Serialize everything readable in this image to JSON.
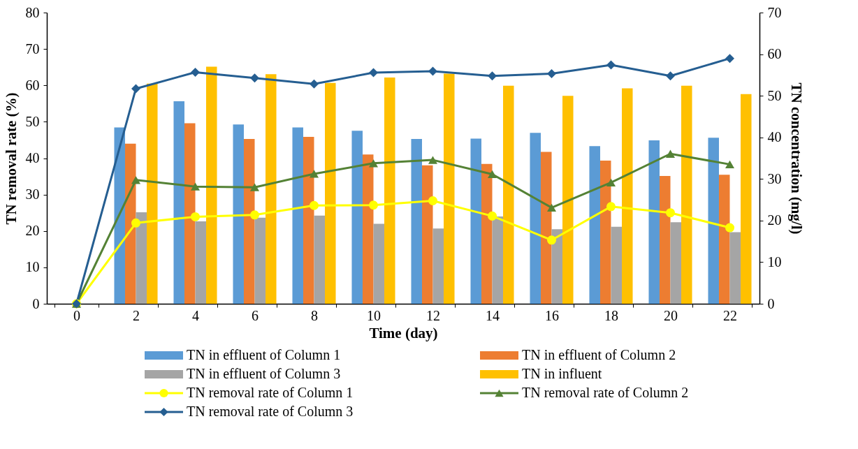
{
  "chart_data": {
    "type": "bar",
    "xlabel": "Time (day)",
    "ylabel": "TN removal rate (%)",
    "y2label": "TN concentration (mg/l)",
    "categories": [
      "0",
      "2",
      "4",
      "6",
      "8",
      "10",
      "12",
      "14",
      "16",
      "18",
      "20",
      "22"
    ],
    "ylim": [
      0,
      80
    ],
    "yticks": [
      0,
      10,
      20,
      30,
      40,
      50,
      60,
      70,
      80
    ],
    "y2lim": [
      0,
      70
    ],
    "y2ticks": [
      0,
      10,
      20,
      30,
      40,
      50,
      60,
      70
    ],
    "grid": false,
    "legend": "bottom",
    "series": [
      {
        "name": "TN in effluent of Column 1",
        "axis": "y2",
        "color": "#5b9bd5",
        "values": [
          null,
          42.4,
          48.7,
          43.1,
          42.4,
          41.6,
          39.6,
          39.7,
          41.1,
          37.9,
          39.3,
          39.9
        ]
      },
      {
        "name": "TN in effluent of Column 2",
        "axis": "y2",
        "color": "#ed7d31",
        "values": [
          null,
          38.5,
          43.4,
          39.6,
          40.1,
          35.9,
          33.3,
          33.6,
          36.5,
          34.4,
          30.7,
          31.0
        ]
      },
      {
        "name": "TN in effluent of Column 3",
        "axis": "y2",
        "color": "#a5a5a5",
        "values": [
          null,
          22.0,
          19.8,
          20.7,
          21.2,
          19.2,
          18.1,
          21.0,
          17.9,
          18.5,
          19.6,
          17.2
        ]
      },
      {
        "name": "TN in influent",
        "axis": "y2",
        "color": "#ffc000",
        "values": [
          null,
          52.9,
          57.0,
          55.2,
          53.1,
          54.4,
          55.3,
          52.4,
          50.0,
          51.8,
          52.4,
          50.4
        ]
      },
      {
        "name": "TN removal rate of Column 1",
        "type": "line",
        "marker": "circle",
        "color": "#ffff00",
        "values": [
          0,
          22.2,
          23.9,
          24.4,
          27.0,
          27.1,
          28.3,
          24.1,
          17.5,
          26.7,
          25.0,
          20.9
        ]
      },
      {
        "name": "TN removal rate of Column 2",
        "type": "line",
        "marker": "triangle",
        "color": "#548235",
        "values": [
          0,
          34.0,
          32.2,
          32.0,
          35.7,
          38.6,
          39.5,
          35.6,
          26.4,
          33.3,
          41.2,
          38.3
        ]
      },
      {
        "name": "TN removal rate of Column 3",
        "type": "line",
        "marker": "diamond",
        "color": "#255e91",
        "values": [
          0,
          59.1,
          63.6,
          62.0,
          60.4,
          63.5,
          63.9,
          62.6,
          63.2,
          65.6,
          62.6,
          67.4
        ]
      }
    ]
  }
}
